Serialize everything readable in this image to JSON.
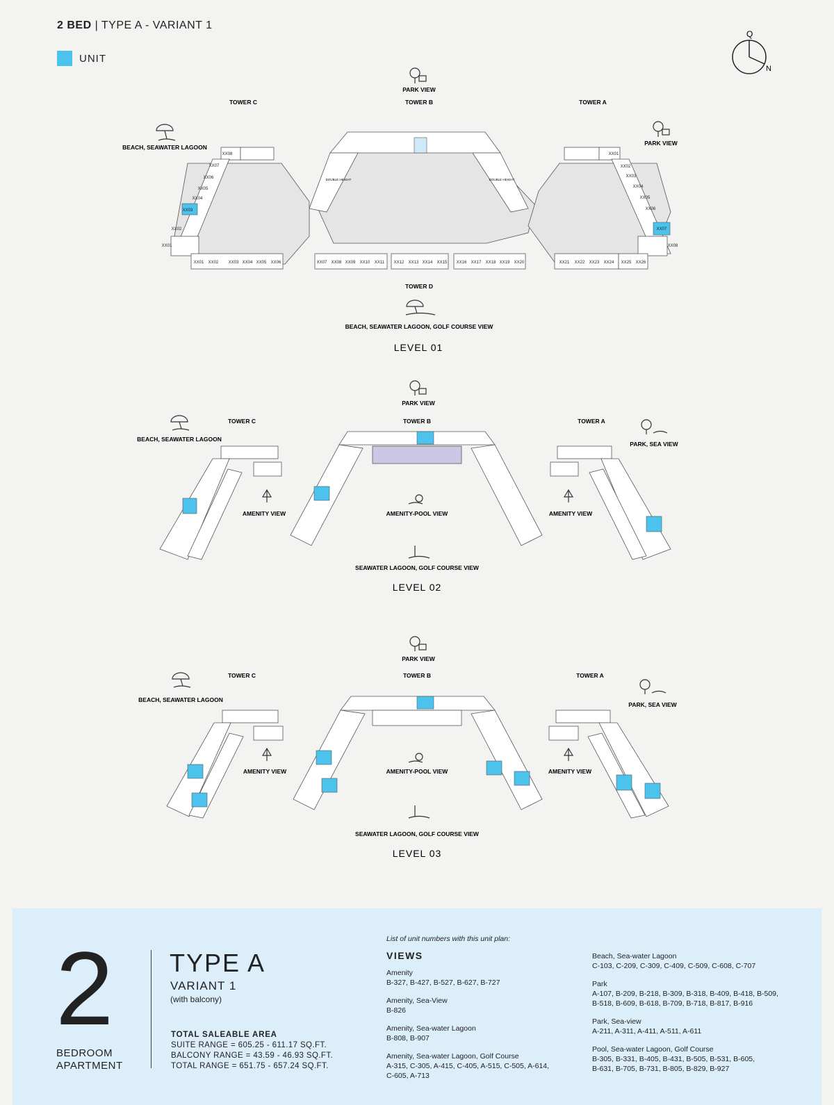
{
  "header": {
    "bed": "2 BED",
    "sep": "|",
    "type": "TYPE A - VARIANT 1"
  },
  "legend": {
    "label": "UNIT",
    "color": "#4cc3ec"
  },
  "compass": {
    "q": "Q",
    "n": "N"
  },
  "level1": {
    "title": "LEVEL 01",
    "towers": [
      "TOWER C",
      "TOWER B",
      "TOWER A",
      "TOWER D"
    ],
    "views": [
      "PARK VIEW",
      "BEACH, SEAWATER LAGOON",
      "PARK VIEW",
      "BEACH, SEAWATER LAGOON, GOLF COURSE VIEW"
    ],
    "double_height": "DOUBLE HEIGHT",
    "units_c": [
      "XX08",
      "XX07",
      "XX06",
      "XX05",
      "XX04",
      "XX03",
      "XX02",
      "XX01"
    ],
    "units_a": [
      "XX01",
      "XX02",
      "XX03",
      "XX04",
      "XX05",
      "XX06",
      "XX07",
      "XX08"
    ],
    "units_d": [
      "XX01",
      "XX02",
      "XX03",
      "XX04",
      "XX05",
      "XX06",
      "XX07",
      "XX08",
      "XX09",
      "XX10",
      "XX11",
      "XX12",
      "XX13",
      "XX14",
      "XX15",
      "XX16",
      "XX17",
      "XX18",
      "XX19",
      "XX20",
      "XX21",
      "XX22",
      "XX23",
      "XX24",
      "XX25",
      "XX26"
    ]
  },
  "level2": {
    "title": "LEVEL 02",
    "towers": [
      "TOWER C",
      "TOWER B",
      "TOWER A"
    ],
    "views": [
      "PARK VIEW",
      "BEACH, SEAWATER LAGOON",
      "PARK, SEA VIEW",
      "AMENITY VIEW",
      "AMENITY-POOL VIEW",
      "AMENITY VIEW",
      "SEAWATER LAGOON, GOLF COURSE VIEW"
    ]
  },
  "level3": {
    "title": "LEVEL 03",
    "towers": [
      "TOWER C",
      "TOWER B",
      "TOWER A"
    ],
    "views": [
      "PARK VIEW",
      "BEACH, SEAWATER LAGOON",
      "PARK, SEA VIEW",
      "AMENITY VIEW",
      "AMENITY-POOL VIEW",
      "AMENITY VIEW",
      "SEAWATER LAGOON, GOLF COURSE VIEW"
    ]
  },
  "unit": {
    "number": "2",
    "bed_line1": "BEDROOM",
    "bed_line2": "APARTMENT",
    "type": "TYPE A",
    "variant": "VARIANT 1",
    "balcony": "(with balcony)",
    "area_title": "TOTAL SALEABLE AREA",
    "suite": "SUITE RANGE = 605.25 - 611.17 SQ.FT.",
    "balcony_range": "BALCONY RANGE = 43.59 - 46.93 SQ.FT.",
    "total": "TOTAL RANGE = 651.75 - 657.24 SQ.FT."
  },
  "list": {
    "note": "List of unit numbers with this unit plan:",
    "views_title": "VIEWS",
    "left": [
      {
        "label": "Amenity",
        "value": "B-327, B-427, B-527, B-627, B-727"
      },
      {
        "label": "Amenity, Sea-View",
        "value": "B-826"
      },
      {
        "label": "Amenity, Sea-water Lagoon",
        "value": "B-808, B-907"
      },
      {
        "label": "Amenity, Sea-water Lagoon, Golf Course",
        "value": "A-315, C-305, A-415, C-405, A-515, C-505, A-614,",
        "value2": "C-605, A-713"
      }
    ],
    "right": [
      {
        "label": "Beach, Sea-water Lagoon",
        "value": "C-103, C-209, C-309, C-409, C-509, C-608, C-707"
      },
      {
        "label": "Park",
        "value": "A-107, B-209, B-218, B-309, B-318, B-409, B-418, B-509,",
        "value2": "B-518, B-609, B-618, B-709, B-718, B-817, B-916"
      },
      {
        "label": "Park, Sea-view",
        "value": "A-211, A-311, A-411, A-511, A-611"
      },
      {
        "label": "Pool, Sea-water Lagoon, Golf Course",
        "value": "B-305, B-331, B-405, B-431, B-505, B-531, B-605,",
        "value2": "B-631, B-705, B-731, B-805, B-829, B-927"
      }
    ]
  }
}
